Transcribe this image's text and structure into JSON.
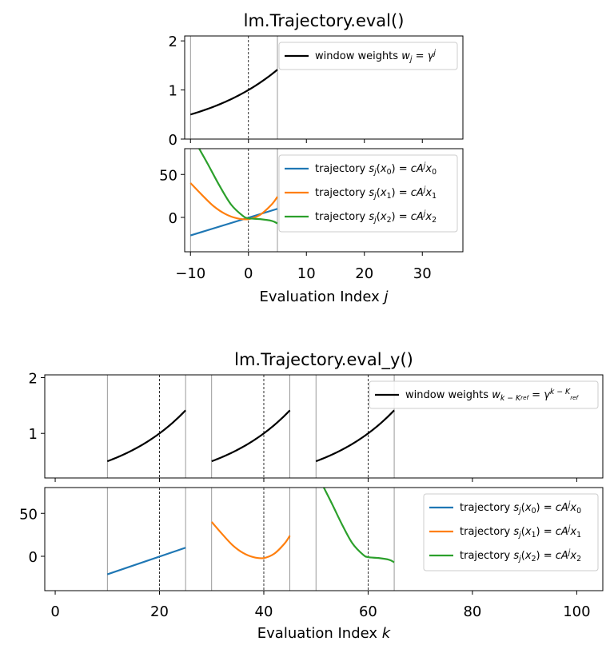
{
  "chart_data": [
    {
      "type": "line",
      "title": "lm.Trajectory.eval()",
      "xlabel": "Evaluation Index j",
      "xlim": [
        -11,
        37
      ],
      "x_ticks": [
        "−10",
        "0",
        "10",
        "20",
        "30"
      ],
      "panels": [
        {
          "ylim": [
            0,
            2.1
          ],
          "y_ticks": [
            "0",
            "1",
            "2"
          ],
          "grid": false,
          "legend_position": "top-right",
          "vlines": {
            "solid_gray": [
              -10,
              5
            ],
            "dashed_black": [
              0
            ]
          },
          "series": [
            {
              "name": "window weights w_j = γ^j",
              "color": "#000000",
              "formula": "gamma^j",
              "gamma": 1.07177,
              "x_range": [
                -10,
                5
              ]
            }
          ]
        },
        {
          "ylim": [
            -40,
            80
          ],
          "y_ticks": [
            "0",
            "50"
          ],
          "grid": false,
          "legend_position": "top-right",
          "vlines": {
            "solid_gray": [
              -10,
              5
            ],
            "dashed_black": [
              0
            ]
          },
          "series": [
            {
              "name": "trajectory s_j(x0) = cA^j x0",
              "color": "#1f77b4",
              "x": [
                -10,
                5
              ],
              "y": [
                -21,
                10
              ]
            },
            {
              "name": "trajectory s_j(x1) = cA^j x1",
              "color": "#ff7f0e",
              "x": [
                -10,
                -8,
                -6,
                -4,
                -2,
                0,
                2,
                4,
                5
              ],
              "y": [
                40,
                26,
                13,
                4,
                -1,
                -2,
                3,
                15,
                24
              ]
            },
            {
              "name": "trajectory s_j(x2) = cA^j x2",
              "color": "#2ca02c",
              "x": [
                -8.5,
                -7,
                -5,
                -3,
                -1,
                0,
                2,
                4,
                5
              ],
              "y": [
                80,
                62,
                37,
                15,
                2,
                -1,
                -2,
                -4,
                -7
              ]
            }
          ]
        }
      ]
    },
    {
      "type": "line",
      "title": "lm.Trajectory.eval_y()",
      "xlabel": "Evaluation Index k",
      "xlim": [
        -2,
        105
      ],
      "x_ticks": [
        "0",
        "20",
        "40",
        "60",
        "80",
        "100"
      ],
      "panels": [
        {
          "ylim": [
            0.2,
            2.05
          ],
          "y_ticks": [
            "1",
            "2"
          ],
          "grid": false,
          "legend_position": "top-right",
          "vlines": {
            "solid_gray": [
              10,
              25,
              30,
              45,
              50,
              65
            ],
            "dashed_black": [
              20,
              40,
              60
            ]
          },
          "series": [
            {
              "name": "window weights w_{k−K_ref} = γ^{k−K_ref}",
              "color": "#000000",
              "formula": "gamma^(k-Kref)",
              "gamma": 1.07177,
              "segments": [
                [
                  10,
                  25,
                  20
                ],
                [
                  30,
                  45,
                  40
                ],
                [
                  50,
                  65,
                  60
                ]
              ]
            }
          ]
        },
        {
          "ylim": [
            -40,
            80
          ],
          "y_ticks": [
            "0",
            "50"
          ],
          "grid": false,
          "legend_position": "top-right",
          "vlines": {
            "solid_gray": [
              10,
              25,
              30,
              45,
              50,
              65
            ],
            "dashed_black": [
              20,
              40,
              60
            ]
          },
          "series": [
            {
              "name": "trajectory s_j(x0) = cA^j x0",
              "color": "#1f77b4",
              "x": [
                10,
                25
              ],
              "y": [
                -21,
                10
              ]
            },
            {
              "name": "trajectory s_j(x1) = cA^j x1",
              "color": "#ff7f0e",
              "x": [
                30,
                32,
                34,
                36,
                38,
                40,
                42,
                44,
                45
              ],
              "y": [
                40,
                26,
                13,
                4,
                -1,
                -2,
                3,
                15,
                24
              ]
            },
            {
              "name": "trajectory s_j(x2) = cA^j x2",
              "color": "#2ca02c",
              "x": [
                51.5,
                53,
                55,
                57,
                59,
                60,
                62,
                64,
                65
              ],
              "y": [
                80,
                62,
                37,
                15,
                2,
                -1,
                -2,
                -4,
                -7
              ]
            }
          ]
        }
      ]
    }
  ]
}
